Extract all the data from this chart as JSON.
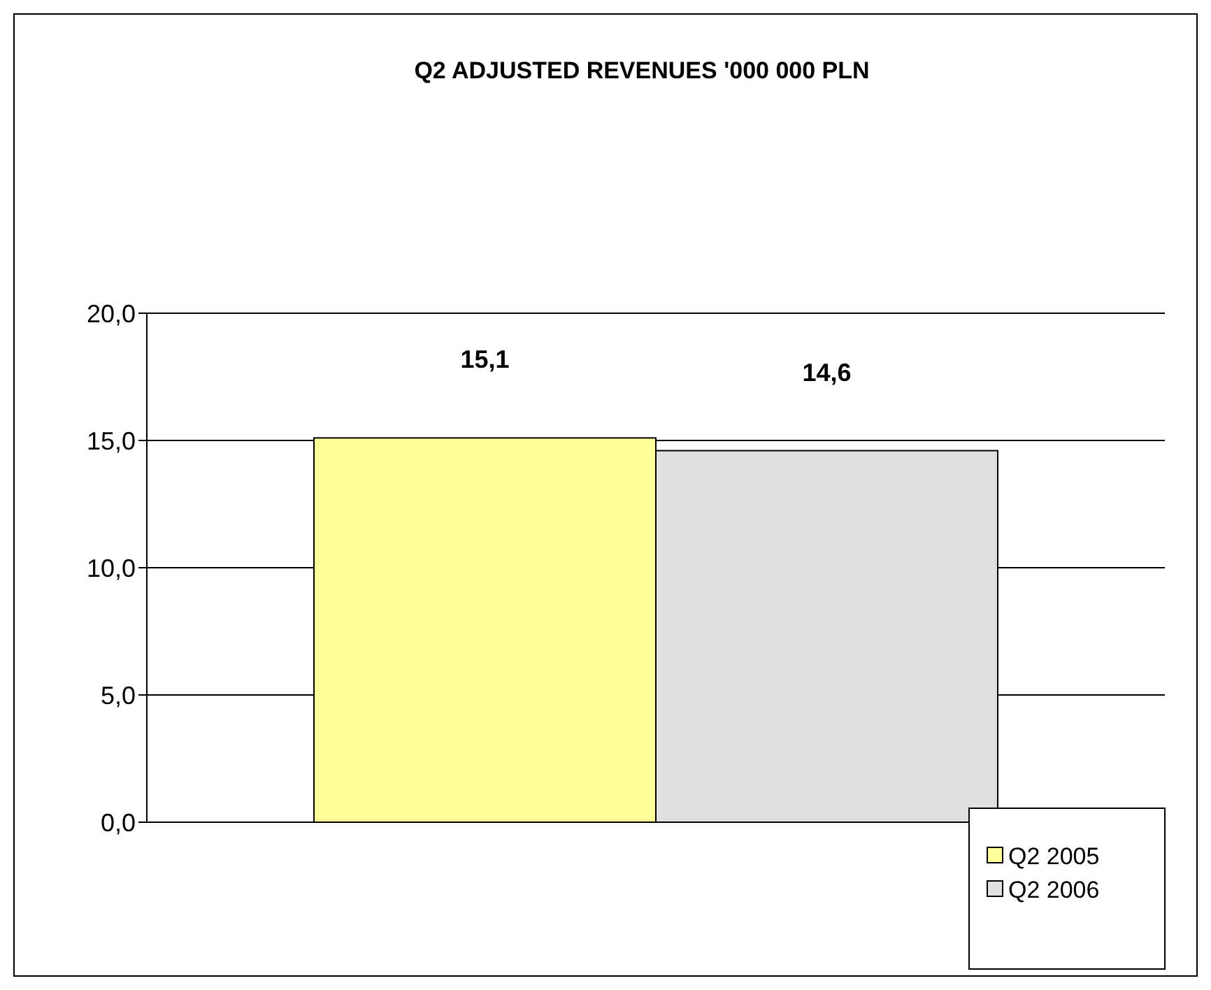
{
  "chart_data": {
    "type": "bar",
    "title": "Q2 ADJUSTED REVENUES '000 000 PLN",
    "categories": [
      null
    ],
    "series": [
      {
        "name": "Q2 2005",
        "color": "#ffff99",
        "values": [
          15.1
        ],
        "value_labels": [
          "15,1"
        ]
      },
      {
        "name": "Q2 2006",
        "color": "#e0e0e0",
        "values": [
          14.6
        ],
        "value_labels": [
          "14,6"
        ]
      }
    ],
    "ylim": [
      0,
      20
    ],
    "yticks": [
      {
        "value": 0,
        "label": "0,0"
      },
      {
        "value": 5,
        "label": "5,0"
      },
      {
        "value": 10,
        "label": "10,0"
      },
      {
        "value": 15,
        "label": "15,0"
      },
      {
        "value": 20,
        "label": "20,0"
      }
    ],
    "grid": "y",
    "legend": "bottom right"
  }
}
